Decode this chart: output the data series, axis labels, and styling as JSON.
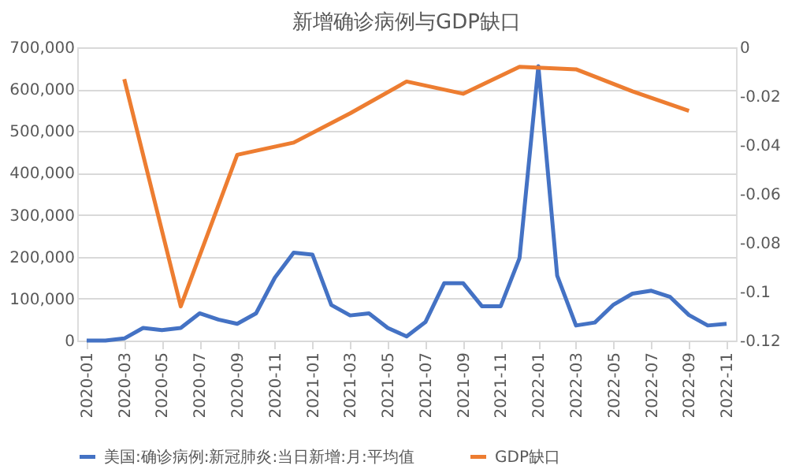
{
  "chart_data": {
    "type": "line",
    "title": "新增确诊病例与GDP缺口",
    "categories": [
      "2020-01",
      null,
      "2020-03",
      null,
      "2020-05",
      null,
      "2020-07",
      null,
      "2020-09",
      null,
      "2020-11",
      null,
      "2021-01",
      null,
      "2021-03",
      null,
      "2021-05",
      null,
      "2021-07",
      null,
      "2021-09",
      null,
      "2021-11",
      null,
      "2022-01",
      null,
      "2022-03",
      null,
      "2022-05",
      null,
      "2022-07",
      null,
      "2022-09",
      null,
      "2022-11"
    ],
    "series": [
      {
        "name": "美国:确诊病例:新冠肺炎:当日新增:月:平均值",
        "color": "#4472c4",
        "values": [
          0,
          0,
          5000,
          30000,
          25000,
          30000,
          65000,
          50000,
          40000,
          65000,
          150000,
          210000,
          205000,
          85000,
          60000,
          65000,
          30000,
          10000,
          44000,
          137000,
          137000,
          82000,
          82000,
          197000,
          655000,
          155000,
          36000,
          43000,
          86000,
          112000,
          119000,
          104000,
          61000,
          36000,
          40000
        ]
      },
      {
        "name": "GDP缺口",
        "color": "#ed7d31",
        "axis": "y2",
        "values": [
          null,
          null,
          -0.013,
          null,
          null,
          -0.106,
          null,
          null,
          -0.044,
          null,
          null,
          -0.039,
          null,
          null,
          -0.027,
          null,
          null,
          -0.014,
          null,
          null,
          -0.019,
          null,
          null,
          -0.008,
          null,
          null,
          -0.009,
          null,
          null,
          -0.018,
          null,
          null,
          -0.026,
          null,
          null
        ]
      }
    ],
    "ylim": [
      0,
      700000
    ],
    "yticks": [
      {
        "value": 0,
        "label": "0"
      },
      {
        "value": 100000,
        "label": "100,000"
      },
      {
        "value": 200000,
        "label": "200,000"
      },
      {
        "value": 300000,
        "label": "300,000"
      },
      {
        "value": 400000,
        "label": "400,000"
      },
      {
        "value": 500000,
        "label": "500,000"
      },
      {
        "value": 600000,
        "label": "600,000"
      },
      {
        "value": 700000,
        "label": "700,000"
      }
    ],
    "y2lim": [
      -0.12,
      0
    ],
    "y2ticks": [
      -0.12,
      -0.1,
      -0.08,
      -0.06,
      -0.04,
      -0.02,
      0
    ],
    "grid": "y",
    "legend": "bottom",
    "marker": "none",
    "line_style": "solid"
  }
}
